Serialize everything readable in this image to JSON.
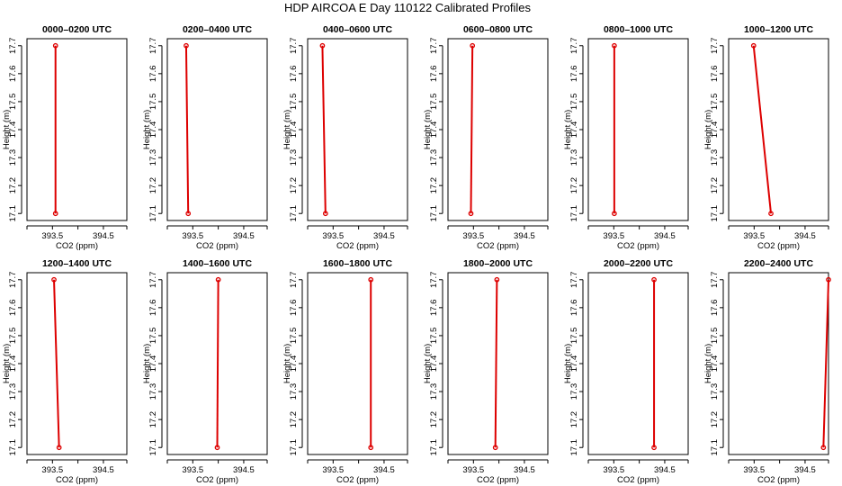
{
  "title": "HDP AIRCOA E  Day 110122  Calibrated Profiles",
  "colors": {
    "line": "#dd0000",
    "point": "#dd0000",
    "axes": "#000000"
  },
  "chart_data": [
    {
      "type": "line",
      "title": "0000–0200 UTC",
      "xlabel": "CO2 (ppm)",
      "ylabel": "Height (m)",
      "xticks": [
        "393.5",
        "394.5"
      ],
      "yticks": [
        "17.1",
        "17.2",
        "17.3",
        "17.4",
        "17.5",
        "17.6",
        "17.7"
      ],
      "xlim": [
        393.0,
        394.96
      ],
      "ylim": [
        17.075,
        17.725
      ],
      "x": [
        393.56,
        393.56
      ],
      "y": [
        17.1,
        17.7
      ]
    },
    {
      "type": "line",
      "title": "0200–0400 UTC",
      "xlabel": "CO2 (ppm)",
      "ylabel": "Height (m)",
      "xticks": [
        "393.5",
        "394.5"
      ],
      "yticks": [
        "17.1",
        "17.2",
        "17.3",
        "17.4",
        "17.5",
        "17.6",
        "17.7"
      ],
      "xlim": [
        393.0,
        394.96
      ],
      "ylim": [
        17.075,
        17.725
      ],
      "x": [
        393.41,
        393.37
      ],
      "y": [
        17.1,
        17.7
      ]
    },
    {
      "type": "line",
      "title": "0400–0600 UTC",
      "xlabel": "CO2 (ppm)",
      "ylabel": "Height (m)",
      "xticks": [
        "393.5",
        "394.5"
      ],
      "yticks": [
        "17.1",
        "17.2",
        "17.3",
        "17.4",
        "17.5",
        "17.6",
        "17.7"
      ],
      "xlim": [
        393.0,
        394.96
      ],
      "ylim": [
        17.075,
        17.725
      ],
      "x": [
        393.35,
        393.29
      ],
      "y": [
        17.1,
        17.7
      ]
    },
    {
      "type": "line",
      "title": "0600–0800 UTC",
      "xlabel": "CO2 (ppm)",
      "ylabel": "Height (m)",
      "xticks": [
        "393.5",
        "394.5"
      ],
      "yticks": [
        "17.1",
        "17.2",
        "17.3",
        "17.4",
        "17.5",
        "17.6",
        "17.7"
      ],
      "xlim": [
        393.0,
        394.96
      ],
      "ylim": [
        17.075,
        17.725
      ],
      "x": [
        393.45,
        393.48
      ],
      "y": [
        17.1,
        17.7
      ]
    },
    {
      "type": "line",
      "title": "0800–1000 UTC",
      "xlabel": "CO2 (ppm)",
      "ylabel": "Height (m)",
      "xticks": [
        "393.5",
        "394.5"
      ],
      "yticks": [
        "17.1",
        "17.2",
        "17.3",
        "17.4",
        "17.5",
        "17.6",
        "17.7"
      ],
      "xlim": [
        393.0,
        394.96
      ],
      "ylim": [
        17.075,
        17.725
      ],
      "x": [
        393.51,
        393.51
      ],
      "y": [
        17.1,
        17.7
      ]
    },
    {
      "type": "line",
      "title": "1000–1200 UTC",
      "xlabel": "CO2 (ppm)",
      "ylabel": "Height (m)",
      "xticks": [
        "393.5",
        "394.5"
      ],
      "yticks": [
        "17.1",
        "17.2",
        "17.3",
        "17.4",
        "17.5",
        "17.6",
        "17.7"
      ],
      "xlim": [
        393.0,
        394.96
      ],
      "ylim": [
        17.075,
        17.725
      ],
      "x": [
        393.83,
        393.49
      ],
      "y": [
        17.1,
        17.7
      ]
    },
    {
      "type": "line",
      "title": "1200–1400 UTC",
      "xlabel": "CO2 (ppm)",
      "ylabel": "Height (m)",
      "xticks": [
        "393.5",
        "394.5"
      ],
      "yticks": [
        "17.1",
        "17.2",
        "17.3",
        "17.4",
        "17.5",
        "17.6",
        "17.7"
      ],
      "xlim": [
        393.0,
        394.96
      ],
      "ylim": [
        17.075,
        17.725
      ],
      "x": [
        393.63,
        393.53
      ],
      "y": [
        17.1,
        17.7
      ]
    },
    {
      "type": "line",
      "title": "1400–1600 UTC",
      "xlabel": "CO2 (ppm)",
      "ylabel": "Height (m)",
      "xticks": [
        "393.5",
        "394.5"
      ],
      "yticks": [
        "17.1",
        "17.2",
        "17.3",
        "17.4",
        "17.5",
        "17.6",
        "17.7"
      ],
      "xlim": [
        393.0,
        394.96
      ],
      "ylim": [
        17.075,
        17.725
      ],
      "x": [
        393.98,
        394.0
      ],
      "y": [
        17.1,
        17.7
      ]
    },
    {
      "type": "line",
      "title": "1600–1800 UTC",
      "xlabel": "CO2 (ppm)",
      "ylabel": "Height (m)",
      "xticks": [
        "393.5",
        "394.5"
      ],
      "yticks": [
        "17.1",
        "17.2",
        "17.3",
        "17.4",
        "17.5",
        "17.6",
        "17.7"
      ],
      "xlim": [
        393.0,
        394.96
      ],
      "ylim": [
        17.075,
        17.725
      ],
      "x": [
        394.24,
        394.24
      ],
      "y": [
        17.1,
        17.7
      ]
    },
    {
      "type": "line",
      "title": "1800–2000 UTC",
      "xlabel": "CO2 (ppm)",
      "ylabel": "Height (m)",
      "xticks": [
        "393.5",
        "394.5"
      ],
      "yticks": [
        "17.1",
        "17.2",
        "17.3",
        "17.4",
        "17.5",
        "17.6",
        "17.7"
      ],
      "xlim": [
        393.0,
        394.96
      ],
      "ylim": [
        17.075,
        17.725
      ],
      "x": [
        393.93,
        393.96
      ],
      "y": [
        17.1,
        17.7
      ]
    },
    {
      "type": "line",
      "title": "2000–2200 UTC",
      "xlabel": "CO2 (ppm)",
      "ylabel": "Height (m)",
      "xticks": [
        "393.5",
        "394.5"
      ],
      "yticks": [
        "17.1",
        "17.2",
        "17.3",
        "17.4",
        "17.5",
        "17.6",
        "17.7"
      ],
      "xlim": [
        393.0,
        394.96
      ],
      "ylim": [
        17.075,
        17.725
      ],
      "x": [
        394.29,
        394.29
      ],
      "y": [
        17.1,
        17.7
      ]
    },
    {
      "type": "line",
      "title": "2200–2400 UTC",
      "xlabel": "CO2 (ppm)",
      "ylabel": "Height (m)",
      "xticks": [
        "393.5",
        "394.5"
      ],
      "yticks": [
        "17.1",
        "17.2",
        "17.3",
        "17.4",
        "17.5",
        "17.6",
        "17.7"
      ],
      "xlim": [
        393.0,
        394.96
      ],
      "ylim": [
        17.075,
        17.725
      ],
      "x": [
        394.86,
        394.96
      ],
      "y": [
        17.1,
        17.7
      ]
    }
  ]
}
